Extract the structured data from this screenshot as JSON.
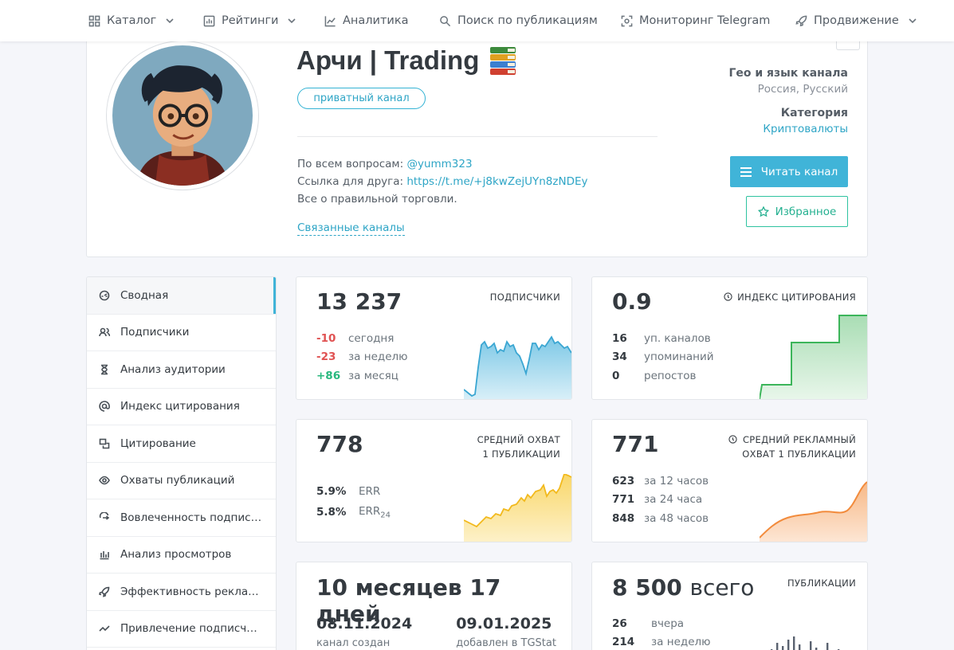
{
  "nav": [
    {
      "label": "Каталог",
      "icon": "grid-icon",
      "dropdown": true
    },
    {
      "label": "Рейтинги",
      "icon": "bar-chart-icon",
      "dropdown": true
    },
    {
      "label": "Аналитика",
      "icon": "line-chart-icon",
      "dropdown": false
    },
    {
      "label": "Поиск по публикациям",
      "icon": "search-icon",
      "dropdown": false
    },
    {
      "label": "Мониторинг Telegram",
      "icon": "scan-icon",
      "dropdown": false
    },
    {
      "label": "Продвижение",
      "icon": "rocket-icon",
      "dropdown": true
    }
  ],
  "channel": {
    "title": "Арчи | Trading",
    "badge": "приватный канал",
    "desc_line1_prefix": "По всем вопросам: ",
    "desc_line1_link": "@yumm323",
    "desc_line2_prefix": "Ссылка для друга: ",
    "desc_line2_link": "https://t.me/+j8kwZejUYn8zNDEy",
    "desc_line3": "Все о правильной торговли.",
    "related": "Связанные каналы",
    "geo_label": "Гео и язык канала",
    "geo_value": "Россия, Русский",
    "category_label": "Категория",
    "category_value": "Криптовалюты",
    "read_button": "Читать канал",
    "favorite_button": "Избранное"
  },
  "sidebar": [
    {
      "label": "Сводная",
      "icon": "dashboard-icon",
      "active": true
    },
    {
      "label": "Подписчики",
      "icon": "users-icon",
      "active": false
    },
    {
      "label": "Анализ аудитории",
      "icon": "hourglass-icon",
      "active": false
    },
    {
      "label": "Индекс цитирования",
      "icon": "at-icon",
      "active": false
    },
    {
      "label": "Цитирование",
      "icon": "quote-icon",
      "active": false
    },
    {
      "label": "Охваты публикаций",
      "icon": "eye-icon",
      "active": false
    },
    {
      "label": "Вовлеченность подписчи...",
      "icon": "engagement-icon",
      "active": false
    },
    {
      "label": "Анализ просмотров",
      "icon": "bars-icon",
      "active": false
    },
    {
      "label": "Эффективность рекламы",
      "icon": "rocket-icon",
      "active": false
    },
    {
      "label": "Привлечение подписчиков",
      "icon": "trend-icon",
      "active": false
    }
  ],
  "cards": {
    "subscribers": {
      "value": "13 237",
      "title": "ПОДПИСЧИКИ",
      "rows": [
        {
          "n": "-10",
          "l": "сегодня",
          "sign": "neg"
        },
        {
          "n": "-23",
          "l": "за неделю",
          "sign": "neg"
        },
        {
          "n": "+86",
          "l": "за месяц",
          "sign": "pos"
        }
      ],
      "color": "#46acd6"
    },
    "citation": {
      "value": "0.9",
      "title": "ИНДЕКС ЦИТИРОВАНИЯ",
      "rows": [
        {
          "n": "16",
          "l": "уп. каналов"
        },
        {
          "n": "34",
          "l": "упоминаний"
        },
        {
          "n": "0",
          "l": "репостов"
        }
      ],
      "color": "#3cb55a"
    },
    "reach": {
      "value": "778",
      "title_line1": "СРЕДНИЙ ОХВАТ",
      "title_line2": "1 ПУБЛИКАЦИИ",
      "err_value": "5.9%",
      "err_label": "ERR",
      "err24_value": "5.8%",
      "err24_label": "ERR",
      "err24_sub": "24",
      "color": "#f4c542"
    },
    "ad_reach": {
      "value": "771",
      "title_line1": "СРЕДНИЙ РЕКЛАМНЫЙ",
      "title_line2": "ОХВАТ 1 ПУБЛИКАЦИИ",
      "rows": [
        {
          "n": "623",
          "l": "за 12 часов"
        },
        {
          "n": "771",
          "l": "за 24 часа"
        },
        {
          "n": "848",
          "l": "за 48 часов"
        }
      ],
      "color": "#f28b3c"
    },
    "age": {
      "value": "10 месяцев 17 дней",
      "created_date": "08.11.2024",
      "created_label": "канал создан",
      "added_date": "09.01.2025",
      "added_label": "добавлен в TGStat"
    },
    "posts": {
      "value_num": "8 500",
      "value_word": "всего",
      "title": "ПУБЛИКАЦИИ",
      "rows": [
        {
          "n": "26",
          "l": "вчера"
        },
        {
          "n": "214",
          "l": "за неделю"
        }
      ],
      "color": "#5a6270"
    }
  }
}
